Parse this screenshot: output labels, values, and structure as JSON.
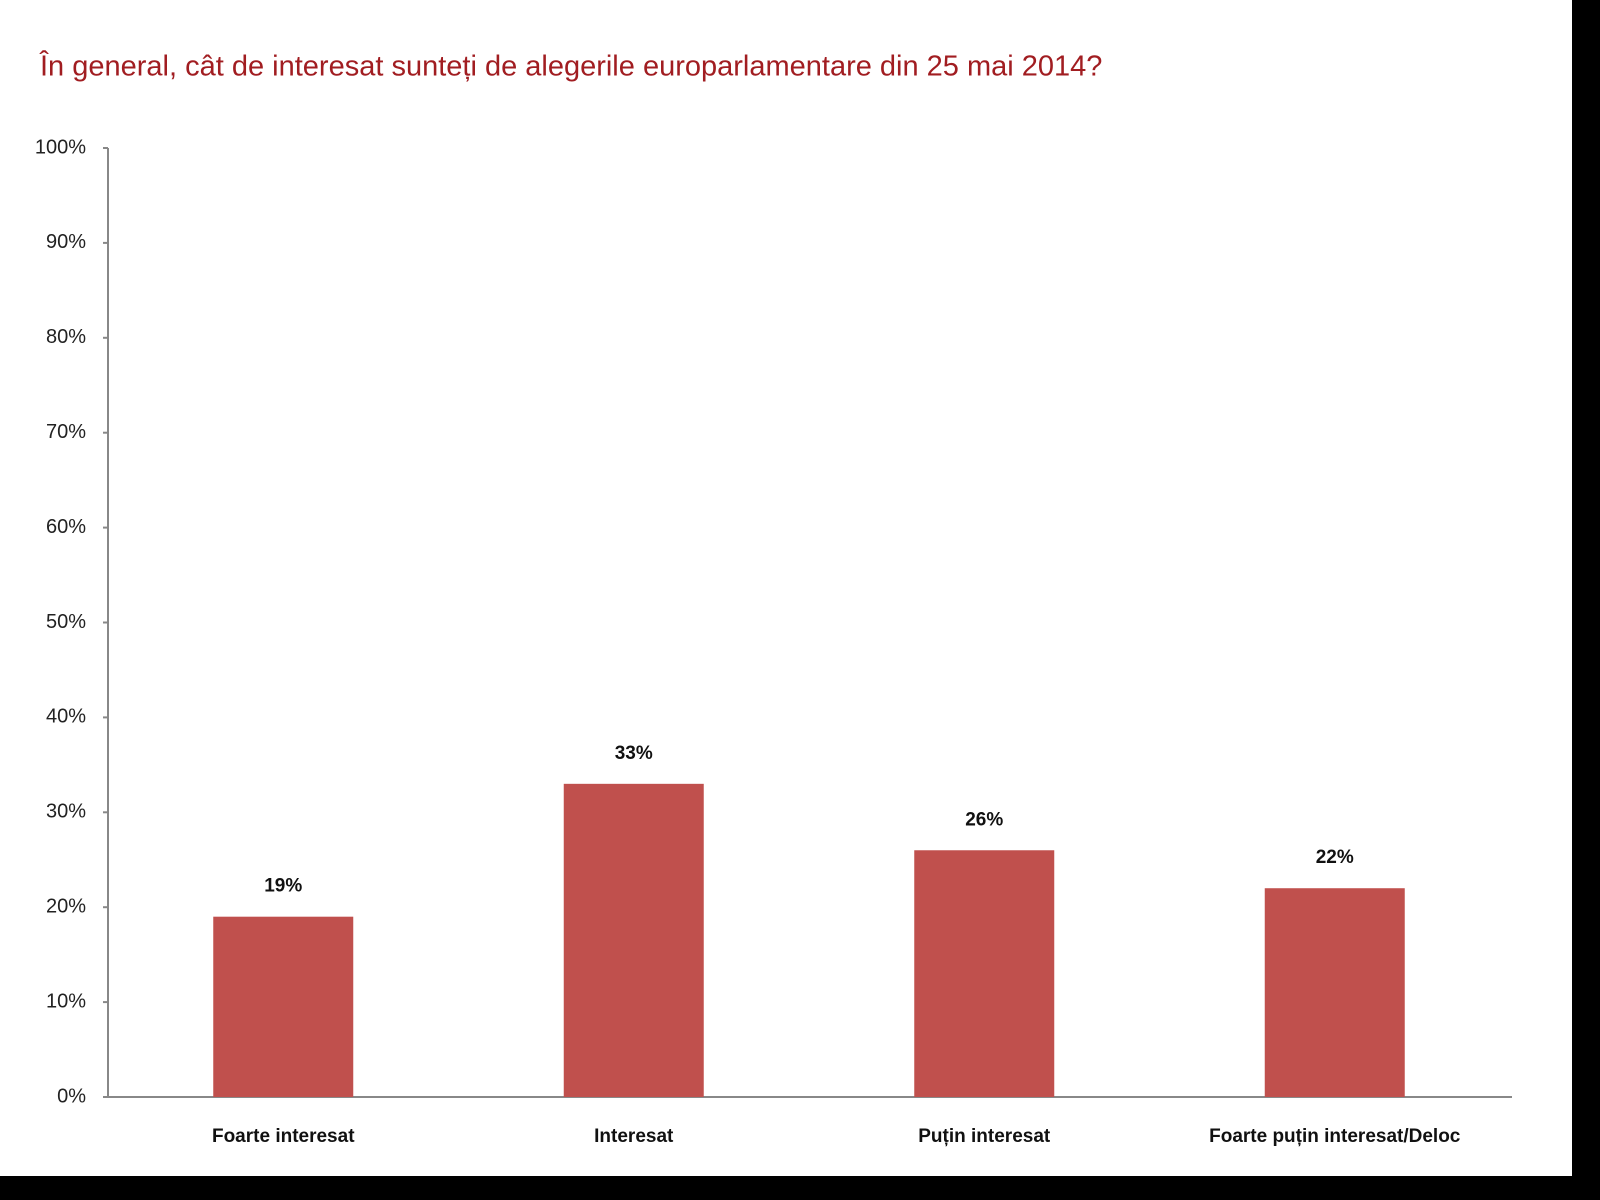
{
  "chart_data": {
    "type": "bar",
    "title": "În general, cât de interesat sunteți de alegerile europarlamentare din 25 mai 2014?",
    "categories": [
      "Foarte interesat",
      "Interesat",
      "Puțin interesat",
      "Foarte puțin interesat/Deloc"
    ],
    "values": [
      19,
      33,
      26,
      22
    ],
    "value_labels": [
      "19%",
      "33%",
      "26%",
      "22%"
    ],
    "color": "#c0504d",
    "ylim": [
      0,
      100
    ],
    "yticks": [
      {
        "value": 0,
        "label": "0%"
      },
      {
        "value": 10,
        "label": "10%"
      },
      {
        "value": 20,
        "label": "20%"
      },
      {
        "value": 30,
        "label": "30%"
      },
      {
        "value": 40,
        "label": "40%"
      },
      {
        "value": 50,
        "label": "50%"
      },
      {
        "value": 60,
        "label": "60%"
      },
      {
        "value": 70,
        "label": "70%"
      },
      {
        "value": 80,
        "label": "80%"
      },
      {
        "value": 90,
        "label": "90%"
      },
      {
        "value": 100,
        "label": "100%"
      }
    ],
    "grid": false
  }
}
